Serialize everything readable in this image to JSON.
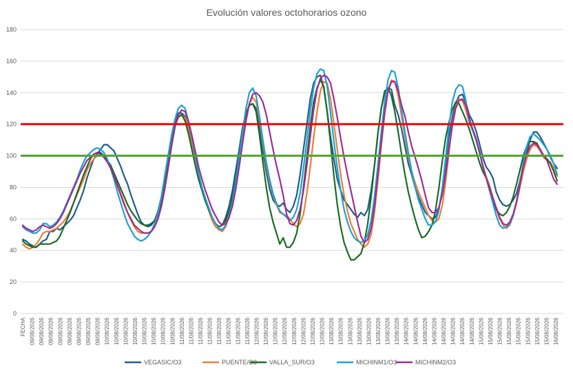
{
  "chart_data": {
    "type": "line",
    "title": "Evolución valores octohorarios ozono",
    "ylim": [
      0,
      180
    ],
    "yticks": [
      0,
      20,
      40,
      60,
      80,
      100,
      120,
      140,
      160,
      180
    ],
    "grid": "horizontal",
    "legend_position": "bottom",
    "x_tick_labels": [
      "FECHA",
      "09/08/2026",
      "09/08/2026",
      "09/08/2026",
      "09/08/2026",
      "09/08/2026",
      "09/08/2026",
      "09/08/2026",
      "09/08/2026",
      "10/08/2026",
      "10/08/2026",
      "10/08/2026",
      "10/08/2026",
      "10/08/2026",
      "10/08/2026",
      "10/08/2026",
      "10/08/2026",
      "11/08/2026",
      "11/08/2026",
      "11/08/2026",
      "11/08/2026",
      "11/08/2026",
      "11/08/2026",
      "11/08/2026",
      "11/08/2026",
      "12/08/2026",
      "12/08/2026",
      "12/08/2026",
      "12/08/2026",
      "12/08/2026",
      "12/08/2026",
      "12/08/2026",
      "12/08/2026",
      "13/08/2026",
      "13/08/2026",
      "13/08/2026",
      "13/08/2026",
      "13/08/2026",
      "13/08/2026",
      "13/08/2026",
      "13/08/2026",
      "14/08/2026",
      "14/08/2026",
      "14/08/2026",
      "14/08/2026",
      "14/08/2026",
      "14/08/2026",
      "14/08/2026",
      "14/08/2026",
      "15/08/2026",
      "15/08/2026",
      "15/08/2026",
      "15/08/2026",
      "15/08/2026",
      "15/08/2026",
      "15/08/2026",
      "15/08/2026",
      "16/08/2026"
    ],
    "reference_lines": [
      {
        "value": 120,
        "color": "#ff0000"
      },
      {
        "value": 100,
        "color": "#4ea72e"
      }
    ],
    "series": [
      {
        "name": "VEGASIC/O3",
        "color": "#1f5c8b",
        "values": [
          47,
          46,
          44,
          43,
          42,
          44,
          46,
          47,
          52,
          52,
          54,
          53,
          55,
          57,
          59,
          62,
          67,
          72,
          78,
          86,
          92,
          98,
          101,
          104,
          107,
          107,
          105,
          103,
          98,
          93,
          87,
          82,
          75,
          69,
          63,
          58,
          56,
          55,
          56,
          59,
          65,
          74,
          87,
          100,
          112,
          121,
          127,
          127,
          125,
          118,
          108,
          98,
          87,
          79,
          72,
          66,
          60,
          57,
          55,
          56,
          61,
          68,
          78,
          91,
          104,
          118,
          127,
          132,
          133,
          130,
          118,
          103,
          90,
          79,
          72,
          69,
          68,
          70,
          66,
          64,
          68,
          75,
          88,
          104,
          120,
          136,
          146,
          150,
          151,
          143,
          128,
          112,
          98,
          85,
          78,
          72,
          69,
          66,
          63,
          61,
          64,
          62,
          66,
          78,
          94,
          114,
          130,
          140,
          143,
          142,
          132,
          126,
          117,
          106,
          95,
          88,
          80,
          74,
          69,
          64,
          62,
          60,
          61,
          66,
          78,
          95,
          112,
          124,
          133,
          138,
          139,
          134,
          126,
          122,
          116,
          108,
          99,
          93,
          90,
          86,
          77,
          72,
          69,
          68,
          69,
          72,
          76,
          84,
          94,
          102,
          110,
          115,
          115,
          112,
          108,
          104,
          99,
          95,
          92
        ]
      },
      {
        "name": "PUENTE/O3",
        "color": "#ed7d31",
        "values": [
          44,
          42,
          41,
          42,
          44,
          47,
          51,
          52,
          52,
          53,
          54,
          56,
          58,
          61,
          65,
          70,
          75,
          80,
          85,
          91,
          95,
          98,
          100,
          101,
          100,
          97,
          93,
          88,
          82,
          76,
          70,
          64,
          59,
          55,
          52,
          51,
          51,
          51,
          52,
          55,
          61,
          70,
          83,
          97,
          110,
          119,
          124,
          126,
          124,
          117,
          107,
          97,
          87,
          79,
          72,
          65,
          59,
          55,
          53,
          52,
          55,
          61,
          70,
          82,
          96,
          111,
          124,
          133,
          137,
          134,
          123,
          108,
          94,
          83,
          75,
          69,
          64,
          63,
          62,
          60,
          57,
          55,
          57,
          63,
          76,
          93,
          111,
          128,
          141,
          147,
          146,
          136,
          120,
          104,
          88,
          75,
          65,
          57,
          52,
          47,
          44,
          42,
          44,
          50,
          64,
          84,
          106,
          126,
          141,
          148,
          147,
          138,
          125,
          112,
          99,
          90,
          83,
          77,
          72,
          67,
          62,
          59,
          58,
          60,
          68,
          83,
          102,
          120,
          131,
          136,
          135,
          129,
          121,
          116,
          111,
          103,
          93,
          87,
          81,
          74,
          66,
          60,
          56,
          54,
          56,
          62,
          70,
          80,
          90,
          98,
          104,
          107,
          106,
          103,
          99,
          97,
          96,
          92,
          87
        ]
      },
      {
        "name": "VALLA_SUR/O3",
        "color": "#196b24",
        "values": [
          46,
          44,
          43,
          42,
          42,
          44,
          44,
          44,
          44,
          45,
          46,
          49,
          54,
          59,
          64,
          70,
          76,
          82,
          88,
          93,
          98,
          101,
          102,
          102,
          100,
          97,
          94,
          89,
          84,
          79,
          74,
          69,
          65,
          62,
          59,
          57,
          56,
          56,
          57,
          59,
          63,
          70,
          81,
          95,
          108,
          119,
          125,
          126,
          122,
          114,
          104,
          94,
          85,
          78,
          71,
          66,
          61,
          57,
          55,
          56,
          59,
          65,
          74,
          87,
          101,
          116,
          126,
          132,
          133,
          128,
          113,
          96,
          80,
          67,
          58,
          51,
          44,
          48,
          42,
          42,
          45,
          51,
          63,
          80,
          99,
          118,
          134,
          143,
          148,
          144,
          128,
          108,
          87,
          69,
          55,
          45,
          39,
          34,
          34,
          36,
          38,
          45,
          57,
          74,
          94,
          114,
          130,
          141,
          143,
          138,
          128,
          115,
          101,
          88,
          77,
          68,
          60,
          53,
          48,
          49,
          52,
          56,
          65,
          79,
          96,
          111,
          121,
          129,
          134,
          133,
          128,
          123,
          117,
          110,
          103,
          96,
          90,
          86,
          80,
          72,
          66,
          63,
          62,
          64,
          68,
          74,
          82,
          91,
          100,
          106,
          109,
          109,
          108,
          104,
          100,
          98,
          95,
          90,
          84
        ]
      },
      {
        "name": "MICHINM1/O3",
        "color": "#1ba0d9",
        "values": [
          55,
          53,
          52,
          51,
          51,
          53,
          57,
          57,
          55,
          56,
          58,
          61,
          65,
          70,
          75,
          80,
          85,
          91,
          96,
          100,
          102,
          104,
          105,
          104,
          102,
          98,
          92,
          85,
          77,
          70,
          63,
          57,
          53,
          49,
          47,
          46,
          47,
          49,
          52,
          57,
          64,
          74,
          87,
          100,
          113,
          123,
          130,
          132,
          130,
          122,
          112,
          100,
          89,
          80,
          73,
          67,
          61,
          57,
          54,
          53,
          56,
          62,
          71,
          84,
          99,
          115,
          130,
          140,
          143,
          138,
          125,
          110,
          96,
          85,
          76,
          70,
          65,
          63,
          61,
          59,
          61,
          66,
          76,
          92,
          110,
          128,
          143,
          152,
          155,
          154,
          144,
          127,
          109,
          92,
          78,
          66,
          58,
          52,
          48,
          46,
          45,
          46,
          50,
          59,
          74,
          94,
          115,
          134,
          148,
          154,
          153,
          143,
          129,
          115,
          102,
          90,
          80,
          72,
          66,
          60,
          56,
          56,
          58,
          65,
          79,
          98,
          118,
          134,
          142,
          145,
          144,
          135,
          122,
          116,
          110,
          102,
          94,
          86,
          78,
          70,
          62,
          56,
          54,
          55,
          57,
          62,
          71,
          83,
          96,
          106,
          112,
          114,
          112,
          110,
          107,
          104,
          100,
          95,
          88
        ]
      },
      {
        "name": "MICHINM2/O3",
        "color": "#a02b93",
        "values": [
          56,
          54,
          53,
          52,
          53,
          55,
          56,
          55,
          54,
          55,
          57,
          60,
          64,
          69,
          74,
          79,
          84,
          89,
          93,
          97,
          99,
          101,
          102,
          101,
          99,
          96,
          92,
          87,
          81,
          75,
          69,
          64,
          60,
          56,
          54,
          52,
          51,
          51,
          52,
          55,
          60,
          68,
          79,
          92,
          106,
          118,
          126,
          129,
          128,
          122,
          113,
          103,
          93,
          85,
          78,
          72,
          66,
          62,
          58,
          56,
          57,
          61,
          68,
          79,
          93,
          108,
          122,
          133,
          139,
          140,
          138,
          134,
          126,
          115,
          104,
          94,
          85,
          75,
          63,
          57,
          56,
          59,
          66,
          78,
          94,
          112,
          129,
          142,
          149,
          151,
          150,
          146,
          136,
          124,
          111,
          99,
          88,
          78,
          68,
          58,
          49,
          45,
          47,
          54,
          68,
          88,
          109,
          128,
          141,
          147,
          147,
          141,
          132,
          125,
          115,
          106,
          99,
          92,
          84,
          75,
          67,
          64,
          64,
          67,
          75,
          88,
          104,
          119,
          130,
          135,
          136,
          132,
          124,
          117,
          111,
          103,
          94,
          86,
          79,
          73,
          67,
          61,
          57,
          56,
          58,
          63,
          71,
          82,
          93,
          101,
          106,
          108,
          107,
          104,
          100,
          97,
          91,
          85,
          82
        ]
      }
    ]
  }
}
